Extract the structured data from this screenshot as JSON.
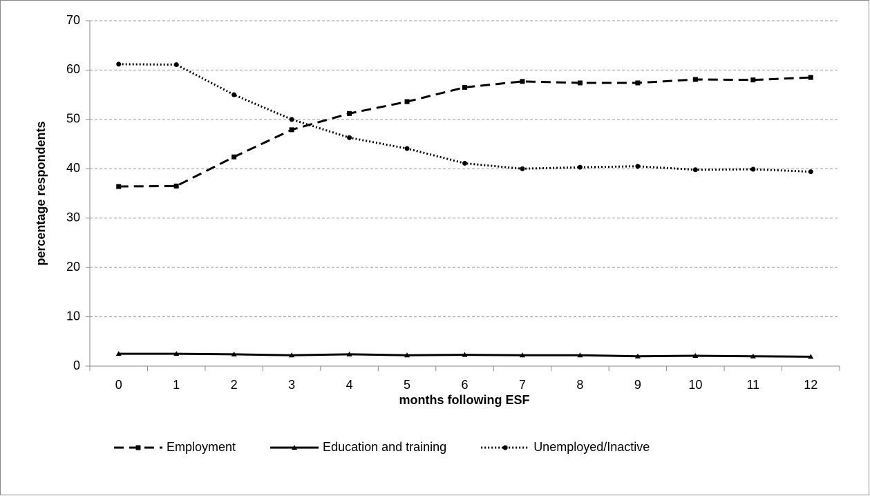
{
  "chart_data": {
    "type": "line",
    "x_label": "months following ESF",
    "y_label": "percentage respondents",
    "categories": [
      "0",
      "1",
      "2",
      "3",
      "4",
      "5",
      "6",
      "7",
      "8",
      "9",
      "10",
      "11",
      "12"
    ],
    "series": [
      {
        "name": "Employment",
        "color": "#000000",
        "dash": "dashed",
        "marker": "square",
        "values": [
          36.4,
          36.5,
          42.4,
          47.9,
          51.2,
          53.6,
          56.5,
          57.7,
          57.4,
          57.4,
          58.1,
          58.0,
          58.5
        ]
      },
      {
        "name": "Education and training",
        "color": "#000000",
        "dash": "solid",
        "marker": "triangle",
        "values": [
          2.5,
          2.5,
          2.4,
          2.2,
          2.4,
          2.2,
          2.3,
          2.2,
          2.2,
          2.0,
          2.1,
          2.0,
          1.9
        ]
      },
      {
        "name": "Unemployed/Inactive",
        "color": "#000000",
        "dash": "dotted",
        "marker": "circle",
        "values": [
          61.2,
          61.1,
          55.0,
          50.0,
          46.3,
          44.1,
          41.1,
          40.0,
          40.3,
          40.5,
          39.8,
          39.9,
          39.4
        ]
      }
    ],
    "ylim": [
      0,
      70
    ],
    "yticks": [
      0,
      10,
      20,
      30,
      40,
      50,
      60,
      70
    ],
    "grid": true,
    "legend": "bottom"
  }
}
